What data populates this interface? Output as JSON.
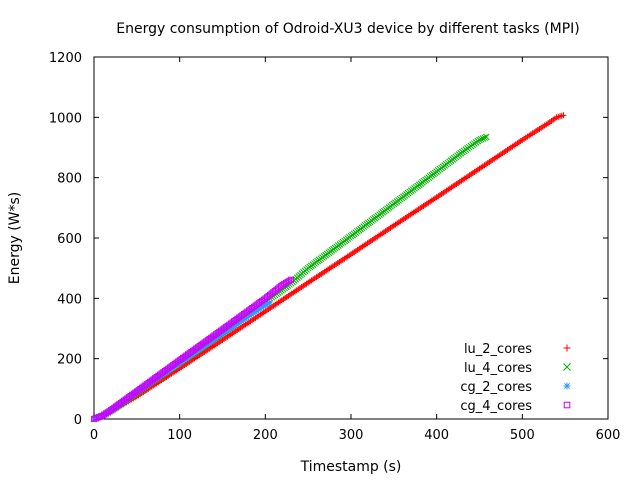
{
  "chart_data": {
    "type": "scatter",
    "title": "Energy consumption of Odroid-XU3 device by different tasks (MPI)",
    "xlabel": "Timestamp (s)",
    "ylabel": "Energy (W*s)",
    "xlim": [
      0,
      600
    ],
    "ylim": [
      0,
      1200
    ],
    "xticks": [
      0,
      100,
      200,
      300,
      400,
      500,
      600
    ],
    "yticks": [
      0,
      200,
      400,
      600,
      800,
      1000,
      1200
    ],
    "grid": false,
    "legend_position": "bottom-right",
    "series": [
      {
        "name": "lu_2_cores",
        "color": "#ff0000",
        "marker": "plus",
        "x": [
          0,
          10,
          20,
          50,
          100,
          150,
          200,
          250,
          300,
          350,
          400,
          450,
          500,
          530,
          540,
          548
        ],
        "y": [
          0,
          10,
          25,
          75,
          168,
          262,
          357,
          452,
          546,
          641,
          735,
          830,
          925,
          980,
          1000,
          1007
        ]
      },
      {
        "name": "lu_4_cores",
        "color": "#00b000",
        "marker": "x",
        "x": [
          0,
          10,
          20,
          50,
          100,
          150,
          200,
          230,
          250,
          300,
          350,
          400,
          430,
          450,
          458
        ],
        "y": [
          0,
          11,
          28,
          87,
          188,
          288,
          388,
          450,
          500,
          606,
          713,
          820,
          885,
          925,
          935
        ]
      },
      {
        "name": "cg_2_cores",
        "color": "#3399ff",
        "marker": "star",
        "x": [
          0,
          10,
          20,
          50,
          100,
          150,
          180,
          200,
          205
        ],
        "y": [
          0,
          10,
          28,
          88,
          185,
          283,
          340,
          378,
          385
        ]
      },
      {
        "name": "cg_4_cores",
        "color": "#cc00ff",
        "marker": "square",
        "x": [
          0,
          10,
          20,
          50,
          100,
          150,
          200,
          220,
          230
        ],
        "y": [
          0,
          11,
          30,
          92,
          195,
          297,
          400,
          445,
          462
        ]
      }
    ]
  }
}
